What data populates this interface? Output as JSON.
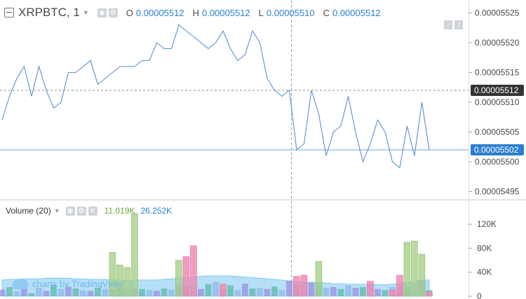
{
  "legend": {
    "symbol": "XRPBTC, 1",
    "o_label": "O",
    "o_value": "0.00005512",
    "h_label": "H",
    "h_value": "0.00005512",
    "l_label": "L",
    "l_value": "0.00005510",
    "c_label": "C",
    "c_value": "0.00005512"
  },
  "volume_legend": {
    "title": "Volume (20)",
    "value1": "11.019K",
    "value2": "26.252K"
  },
  "watermark": "charts by TradingView",
  "colors": {
    "price_line": "#5b8fd6",
    "up_volume": "#a7d08a",
    "down_volume": "#f08cb4",
    "ma_area": "#8fd0f5",
    "current_badge": "#2a7fd0",
    "last_badge": "#333333"
  },
  "chart_data": [
    {
      "type": "line",
      "series": [
        {
          "values": [
            5.507e-05,
            5.511e-05,
            5.514e-05,
            5.516e-05,
            5.511e-05,
            5.516e-05,
            5.512e-05,
            5.509e-05,
            5.51e-05,
            5.515e-05,
            5.515e-05,
            5.516e-05,
            5.517e-05,
            5.513e-05,
            5.514e-05,
            5.515e-05,
            5.516e-05,
            5.516e-05,
            5.516e-05,
            5.517e-05,
            5.517e-05,
            5.52e-05,
            5.519e-05,
            5.519e-05,
            5.523e-05,
            5.522e-05,
            5.521e-05,
            5.52e-05,
            5.519e-05,
            5.52e-05,
            5.522e-05,
            5.519e-05,
            5.517e-05,
            5.518e-05,
            5.522e-05,
            5.52e-05,
            5.514e-05,
            5.512e-05,
            5.511e-05,
            5.512e-05,
            5.502e-05,
            5.503e-05,
            5.512e-05,
            5.508e-05,
            5.501e-05,
            5.505e-05,
            5.506e-05,
            5.511e-05,
            5.505e-05,
            5.5e-05,
            5.503e-05,
            5.507e-05,
            5.505e-05,
            5.5e-05,
            5.499e-05,
            5.506e-05,
            5.501e-05,
            5.51e-05,
            5.502e-05
          ]
        }
      ],
      "ylim": [
        5.494e-05,
        5.526e-05
      ],
      "yticks": [
        "0.00005525",
        "0.00005520",
        "0.00005515",
        "0.00005510",
        "0.00005505",
        "0.00005500",
        "0.00005495"
      ],
      "last_value_label": "0.00005512",
      "current_value_label": "0.00005502",
      "last_value": 5.512e-05,
      "current_value": 5.502e-05,
      "grid": false
    },
    {
      "type": "bar",
      "up_volumes": [
        0,
        0,
        0,
        0,
        0,
        0,
        0,
        0,
        0,
        0,
        0,
        0,
        0,
        0,
        0,
        73000,
        52000,
        48000,
        138000,
        0,
        0,
        0,
        0,
        0,
        60000,
        0,
        0,
        0,
        0,
        0,
        0,
        0,
        0,
        0,
        0,
        0,
        0,
        0,
        0,
        0,
        0,
        0,
        0,
        58000,
        0,
        0,
        0,
        0,
        0,
        0,
        0,
        0,
        0,
        0,
        0,
        90000,
        92000,
        70000,
        0
      ],
      "down_volumes": [
        0,
        0,
        0,
        0,
        0,
        0,
        0,
        0,
        0,
        0,
        0,
        0,
        0,
        0,
        0,
        0,
        0,
        0,
        0,
        0,
        0,
        0,
        0,
        0,
        0,
        66000,
        84000,
        0,
        0,
        0,
        20000,
        0,
        0,
        0,
        0,
        0,
        0,
        0,
        0,
        0,
        33000,
        35000,
        0,
        0,
        0,
        0,
        0,
        0,
        0,
        0,
        25000,
        0,
        0,
        10000,
        35000,
        0,
        0,
        0,
        7000
      ],
      "base_volumes": [
        11000,
        15000,
        8000,
        18000,
        5000,
        14000,
        9000,
        19000,
        12000,
        16000,
        13000,
        10000,
        9000,
        14000,
        12000,
        11000,
        15000,
        13000,
        12000,
        12000,
        10000,
        9000,
        13000,
        11000,
        19000,
        18000,
        17000,
        12000,
        20000,
        24000,
        11000,
        18000,
        10000,
        21000,
        13000,
        14000,
        12000,
        16000,
        10000,
        26000,
        20000,
        24000,
        23000,
        21000,
        14000,
        15000,
        12000,
        18000,
        14000,
        15000,
        20000,
        12000,
        10000,
        15000,
        18000,
        16000,
        21000,
        27000,
        10000
      ],
      "ma_area": [
        27000,
        28000,
        28000,
        29000,
        29000,
        29000,
        30000,
        30000,
        30000,
        30000,
        29000,
        29000,
        28000,
        28000,
        28000,
        27000,
        27000,
        26000,
        27000,
        27000,
        27000,
        27000,
        28000,
        29000,
        30000,
        31000,
        32000,
        33000,
        34000,
        34000,
        34000,
        34000,
        33000,
        32000,
        31000,
        30000,
        29000,
        28000,
        27000,
        25000,
        25000,
        24000,
        23000,
        23000,
        22000,
        21000,
        21000,
        20000,
        20000,
        20000,
        20000,
        19000,
        19000,
        20000,
        21000,
        23000,
        25000,
        27000,
        27000
      ],
      "ylim": [
        0,
        140000
      ],
      "yticks": [
        "120K",
        "80K",
        "40K",
        "0"
      ]
    }
  ]
}
